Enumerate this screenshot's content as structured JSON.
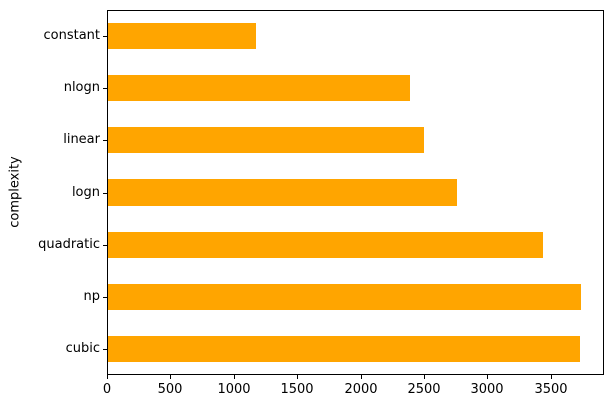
{
  "chart_data": {
    "type": "bar",
    "orientation": "horizontal",
    "title": "",
    "xlabel": "",
    "ylabel": "complexity",
    "categories": [
      "constant",
      "nlogn",
      "linear",
      "logn",
      "quadratic",
      "np",
      "cubic"
    ],
    "values": [
      1170,
      2380,
      2490,
      2750,
      3430,
      3730,
      3725
    ],
    "x_ticks": [
      0,
      500,
      1000,
      1500,
      2000,
      2500,
      3000,
      3500
    ],
    "xlim": [
      0,
      3920
    ],
    "bar_color": "#ffa500",
    "bar_width_fraction": 0.5,
    "grid": false,
    "legend": false,
    "spine_color": "#000000",
    "text_color": "#000000"
  }
}
